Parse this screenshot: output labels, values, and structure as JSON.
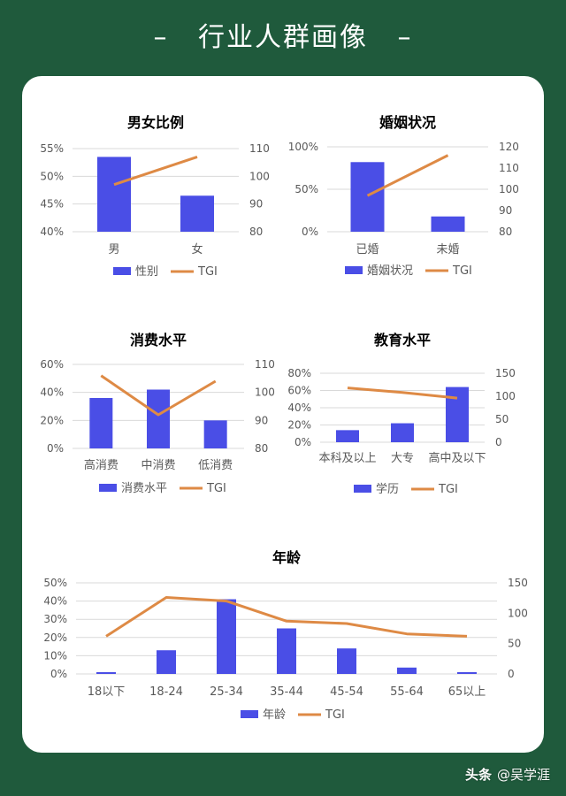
{
  "header": {
    "title": "行业人群画像",
    "decor": "–"
  },
  "watermark": {
    "logo": "头条",
    "handle": "@吴学涯"
  },
  "colors": {
    "bar": "#4a4ee6",
    "line": "#de8a45",
    "axis": "#d9d9d9",
    "text": "#595959",
    "title": "#000000"
  },
  "chart_data": [
    {
      "type": "bar",
      "title": "男女比例",
      "categories": [
        "男",
        "女"
      ],
      "series": [
        {
          "name": "性别",
          "kind": "bar",
          "axis": "left",
          "values": [
            53.5,
            46.5
          ]
        },
        {
          "name": "TGI",
          "kind": "line",
          "axis": "right",
          "values": [
            97,
            107
          ]
        }
      ],
      "ylim": [
        40,
        55
      ],
      "yticks": [
        40,
        45,
        50,
        55
      ],
      "ytick_labels": [
        "40%",
        "45%",
        "50%",
        "55%"
      ],
      "y2lim": [
        80,
        110
      ],
      "y2ticks": [
        80,
        90,
        100,
        110
      ],
      "y2tick_labels": [
        "80",
        "90",
        "100",
        "110"
      ],
      "legend": "bottom"
    },
    {
      "type": "bar",
      "title": "婚姻状况",
      "categories": [
        "已婚",
        "未婚"
      ],
      "series": [
        {
          "name": "婚姻状况",
          "kind": "bar",
          "axis": "left",
          "values": [
            82,
            18
          ]
        },
        {
          "name": "TGI",
          "kind": "line",
          "axis": "right",
          "values": [
            97,
            116
          ]
        }
      ],
      "ylim": [
        0,
        100
      ],
      "yticks": [
        0,
        50,
        100
      ],
      "ytick_labels": [
        "0%",
        "50%",
        "100%"
      ],
      "y2lim": [
        80,
        120
      ],
      "y2ticks": [
        80,
        90,
        100,
        110,
        120
      ],
      "y2tick_labels": [
        "80",
        "90",
        "100",
        "110",
        "120"
      ],
      "legend": "bottom"
    },
    {
      "type": "bar",
      "title": "消费水平",
      "categories": [
        "高消费",
        "中消费",
        "低消费"
      ],
      "series": [
        {
          "name": "消费水平",
          "kind": "bar",
          "axis": "left",
          "values": [
            36,
            42,
            20
          ]
        },
        {
          "name": "TGI",
          "kind": "line",
          "axis": "right",
          "values": [
            106,
            92,
            104
          ]
        }
      ],
      "ylim": [
        0,
        60
      ],
      "yticks": [
        0,
        20,
        40,
        60
      ],
      "ytick_labels": [
        "0%",
        "20%",
        "40%",
        "60%"
      ],
      "y2lim": [
        80,
        110
      ],
      "y2ticks": [
        80,
        90,
        100,
        110
      ],
      "y2tick_labels": [
        "80",
        "90",
        "100",
        "110"
      ],
      "legend": "bottom"
    },
    {
      "type": "bar",
      "title": "教育水平",
      "categories": [
        "本科及以上",
        "大专",
        "高中及以下"
      ],
      "series": [
        {
          "name": "学历",
          "kind": "bar",
          "axis": "left",
          "values": [
            14,
            22,
            64
          ]
        },
        {
          "name": "TGI",
          "kind": "line",
          "axis": "right",
          "values": [
            118,
            108,
            96
          ]
        }
      ],
      "ylim": [
        0,
        80
      ],
      "yticks": [
        0,
        20,
        40,
        60,
        80
      ],
      "ytick_labels": [
        "0%",
        "20%",
        "40%",
        "60%",
        "80%"
      ],
      "y2lim": [
        0,
        150
      ],
      "y2ticks": [
        0,
        50,
        100,
        150
      ],
      "y2tick_labels": [
        "0",
        "50",
        "100",
        "150"
      ],
      "legend": "bottom"
    },
    {
      "type": "bar",
      "title": "年龄",
      "categories": [
        "18以下",
        "18-24",
        "25-34",
        "35-44",
        "45-54",
        "55-64",
        "65以上"
      ],
      "series": [
        {
          "name": "年龄",
          "kind": "bar",
          "axis": "left",
          "values": [
            1,
            13,
            41,
            25,
            14,
            3.5,
            1
          ]
        },
        {
          "name": "TGI",
          "kind": "line",
          "axis": "right",
          "values": [
            62,
            126,
            120,
            87,
            83,
            66,
            62
          ]
        }
      ],
      "ylim": [
        0,
        50
      ],
      "yticks": [
        0,
        10,
        20,
        30,
        40,
        50
      ],
      "ytick_labels": [
        "0%",
        "10%",
        "20%",
        "30%",
        "40%",
        "50%"
      ],
      "y2lim": [
        0,
        150
      ],
      "y2ticks": [
        0,
        50,
        100,
        150
      ],
      "y2tick_labels": [
        "0",
        "50",
        "100",
        "150"
      ],
      "legend": "bottom"
    }
  ]
}
